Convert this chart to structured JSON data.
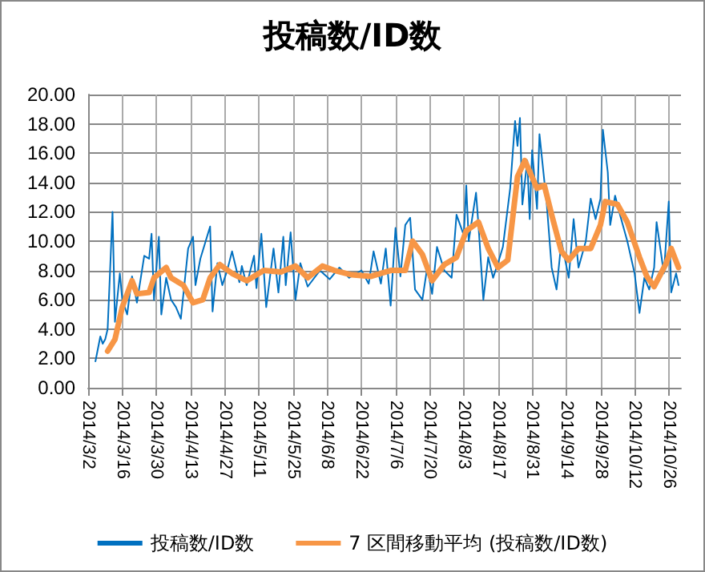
{
  "chart_data": {
    "type": "line",
    "title": "投稿数/ID数",
    "legend": "bottom",
    "grid": true,
    "marker": "none",
    "xlim": [
      "2014-03-02",
      "2014-10-31"
    ],
    "xticks": [
      {
        "value": "2014-03-02",
        "label": "2014/3/2"
      },
      {
        "value": "2014-03-16",
        "label": "2014/3/16"
      },
      {
        "value": "2014-03-30",
        "label": "2014/3/30"
      },
      {
        "value": "2014-04-13",
        "label": "2014/4/13"
      },
      {
        "value": "2014-04-27",
        "label": "2014/4/27"
      },
      {
        "value": "2014-05-11",
        "label": "2014/5/11"
      },
      {
        "value": "2014-05-25",
        "label": "2014/5/25"
      },
      {
        "value": "2014-06-08",
        "label": "2014/6/8"
      },
      {
        "value": "2014-06-22",
        "label": "2014/6/22"
      },
      {
        "value": "2014-07-06",
        "label": "2014/7/6"
      },
      {
        "value": "2014-07-20",
        "label": "2014/7/20"
      },
      {
        "value": "2014-08-03",
        "label": "2014/8/3"
      },
      {
        "value": "2014-08-17",
        "label": "2014/8/17"
      },
      {
        "value": "2014-08-31",
        "label": "2014/8/31"
      },
      {
        "value": "2014-09-14",
        "label": "2014/9/14"
      },
      {
        "value": "2014-09-28",
        "label": "2014/9/28"
      },
      {
        "value": "2014-10-12",
        "label": "2014/10/12"
      },
      {
        "value": "2014-10-26",
        "label": "2014/10/26"
      }
    ],
    "ylim": [
      0,
      20
    ],
    "yticks": [
      {
        "value": 0,
        "label": "0.00"
      },
      {
        "value": 2,
        "label": "2.00"
      },
      {
        "value": 4,
        "label": "4.00"
      },
      {
        "value": 6,
        "label": "6.00"
      },
      {
        "value": 8,
        "label": "8.00"
      },
      {
        "value": 10,
        "label": "10.00"
      },
      {
        "value": 12,
        "label": "12.00"
      },
      {
        "value": 14,
        "label": "14.00"
      },
      {
        "value": 16,
        "label": "16.00"
      },
      {
        "value": 18,
        "label": "18.00"
      },
      {
        "value": 20,
        "label": "20.00"
      }
    ],
    "series": [
      {
        "name": "投稿数/ID数",
        "color": "#0070c0",
        "line_style": "solid",
        "x": [
          "2014-03-05",
          "2014-03-07",
          "2014-03-08",
          "2014-03-09",
          "2014-03-10",
          "2014-03-12",
          "2014-03-13",
          "2014-03-15",
          "2014-03-16",
          "2014-03-18",
          "2014-03-20",
          "2014-03-22",
          "2014-03-25",
          "2014-03-27",
          "2014-03-28",
          "2014-03-29",
          "2014-03-31",
          "2014-04-01",
          "2014-04-03",
          "2014-04-05",
          "2014-04-07",
          "2014-04-09",
          "2014-04-12",
          "2014-04-14",
          "2014-04-15",
          "2014-04-17",
          "2014-04-21",
          "2014-04-22",
          "2014-04-24",
          "2014-04-26",
          "2014-04-28",
          "2014-04-30",
          "2014-05-03",
          "2014-05-04",
          "2014-05-06",
          "2014-05-09",
          "2014-05-10",
          "2014-05-12",
          "2014-05-14",
          "2014-05-17",
          "2014-05-19",
          "2014-05-21",
          "2014-05-22",
          "2014-05-24",
          "2014-05-26",
          "2014-05-28",
          "2014-05-31",
          "2014-06-05",
          "2014-06-09",
          "2014-06-13",
          "2014-06-17",
          "2014-06-22",
          "2014-06-25",
          "2014-06-27",
          "2014-06-30",
          "2014-07-02",
          "2014-07-04",
          "2014-07-06",
          "2014-07-08",
          "2014-07-10",
          "2014-07-12",
          "2014-07-14",
          "2014-07-17",
          "2014-07-19",
          "2014-07-21",
          "2014-07-23",
          "2014-07-26",
          "2014-07-29",
          "2014-07-31",
          "2014-08-03",
          "2014-08-04",
          "2014-08-05",
          "2014-08-08",
          "2014-08-09",
          "2014-08-11",
          "2014-08-13",
          "2014-08-15",
          "2014-08-17",
          "2014-08-19",
          "2014-08-22",
          "2014-08-24",
          "2014-08-25",
          "2014-08-26",
          "2014-08-27",
          "2014-08-29",
          "2014-08-30",
          "2014-08-31",
          "2014-09-02",
          "2014-09-03",
          "2014-09-06",
          "2014-09-08",
          "2014-09-10",
          "2014-09-12",
          "2014-09-15",
          "2014-09-17",
          "2014-09-19",
          "2014-09-22",
          "2014-09-24",
          "2014-09-26",
          "2014-09-28",
          "2014-09-29",
          "2014-10-01",
          "2014-10-02",
          "2014-10-04",
          "2014-10-06",
          "2014-10-09",
          "2014-10-12",
          "2014-10-14",
          "2014-10-16",
          "2014-10-18",
          "2014-10-20",
          "2014-10-21",
          "2014-10-24",
          "2014-10-26",
          "2014-10-27",
          "2014-10-29",
          "2014-10-30"
        ],
        "values": [
          1.8,
          3.5,
          3.0,
          3.3,
          4.0,
          12.0,
          4.5,
          7.8,
          6.0,
          5.0,
          7.6,
          5.8,
          9.0,
          8.8,
          10.5,
          6.0,
          10.3,
          5.0,
          7.5,
          6.0,
          5.5,
          4.7,
          9.5,
          10.3,
          7.0,
          8.8,
          11.0,
          5.2,
          8.5,
          7.0,
          8.0,
          9.3,
          7.2,
          8.3,
          7.0,
          9.0,
          6.8,
          10.5,
          5.5,
          9.5,
          6.5,
          10.3,
          7.0,
          10.6,
          6.0,
          8.5,
          6.9,
          8.0,
          7.4,
          8.2,
          7.5,
          8.0,
          7.1,
          9.3,
          7.1,
          9.5,
          5.6,
          10.9,
          7.6,
          11.1,
          11.6,
          6.7,
          6.0,
          8.2,
          6.4,
          9.6,
          8.0,
          7.5,
          11.8,
          10.4,
          13.8,
          10.0,
          13.3,
          11.1,
          6.0,
          8.9,
          7.5,
          8.5,
          9.6,
          13.6,
          18.2,
          16.5,
          18.4,
          12.5,
          15.5,
          11.5,
          16.2,
          12.2,
          17.3,
          12.5,
          8.2,
          6.7,
          10.0,
          7.5,
          11.5,
          8.2,
          10.0,
          12.9,
          11.5,
          12.9,
          17.6,
          14.7,
          11.1,
          13.1,
          11.8,
          10.0,
          7.8,
          5.1,
          7.5,
          6.7,
          8.2,
          11.3,
          7.8,
          12.7,
          6.5,
          7.8,
          7.0
        ]
      },
      {
        "name": "7 区間移動平均 (投稿数/ID数)",
        "color": "#f79646",
        "line_style": "solid",
        "x": [
          "2014-03-10",
          "2014-03-13",
          "2014-03-16",
          "2014-03-20",
          "2014-03-22",
          "2014-03-27",
          "2014-03-29",
          "2014-04-03",
          "2014-04-05",
          "2014-04-10",
          "2014-04-14",
          "2014-04-18",
          "2014-04-21",
          "2014-04-25",
          "2014-04-30",
          "2014-05-06",
          "2014-05-13",
          "2014-05-20",
          "2014-05-26",
          "2014-05-31",
          "2014-06-06",
          "2014-06-11",
          "2014-06-18",
          "2014-06-26",
          "2014-07-04",
          "2014-07-10",
          "2014-07-13",
          "2014-07-17",
          "2014-07-21",
          "2014-07-26",
          "2014-07-31",
          "2014-08-04",
          "2014-08-09",
          "2014-08-13",
          "2014-08-17",
          "2014-08-21",
          "2014-08-25",
          "2014-08-28",
          "2014-09-02",
          "2014-09-05",
          "2014-09-08",
          "2014-09-12",
          "2014-09-15",
          "2014-09-19",
          "2014-09-24",
          "2014-09-28",
          "2014-09-30",
          "2014-10-05",
          "2014-10-09",
          "2014-10-14",
          "2014-10-17",
          "2014-10-20",
          "2014-10-25",
          "2014-10-27",
          "2014-10-30"
        ],
        "values": [
          2.5,
          3.3,
          5.5,
          7.3,
          6.4,
          6.5,
          7.5,
          8.2,
          7.5,
          7.0,
          5.8,
          6.0,
          7.5,
          8.4,
          7.8,
          7.3,
          8.0,
          7.9,
          8.3,
          7.5,
          8.3,
          8.0,
          7.7,
          7.6,
          8.0,
          8.0,
          10.0,
          9.1,
          7.3,
          8.4,
          8.9,
          10.7,
          11.3,
          9.5,
          8.2,
          8.7,
          14.4,
          15.5,
          13.6,
          13.8,
          11.8,
          9.3,
          8.7,
          9.5,
          9.5,
          11.1,
          12.7,
          12.5,
          11.3,
          8.9,
          7.6,
          6.9,
          8.5,
          9.5,
          8.2
        ]
      }
    ]
  }
}
